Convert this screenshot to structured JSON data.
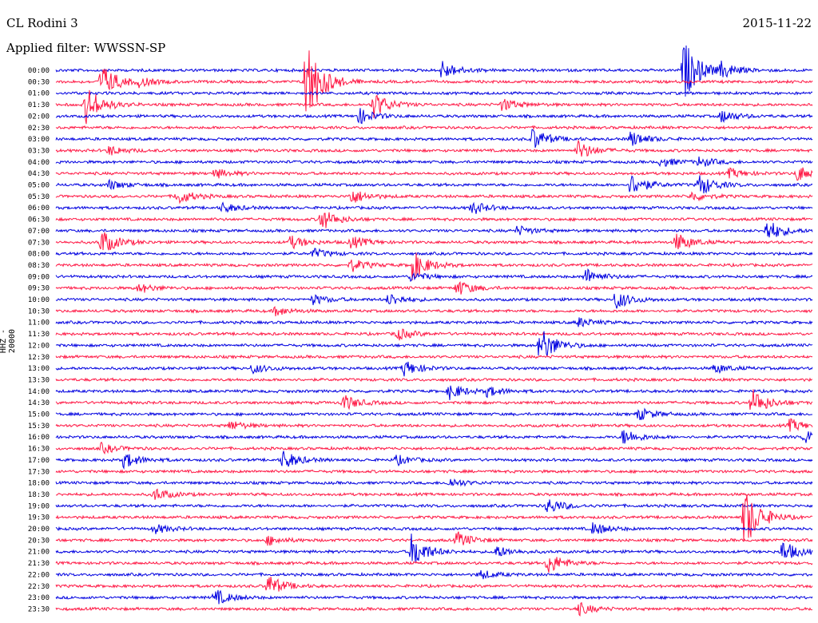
{
  "header": {
    "station": "CL Rodini 3",
    "date": "2015-11-22",
    "filter_text": "Applied filter: WWSSN-SP"
  },
  "chart_data": {
    "type": "helicorder",
    "title": "CL Rodini 3",
    "date": "2015-11-22",
    "filter": "WWSSN-SP",
    "ylabel": "HHZ - 20000",
    "row_minutes": 30,
    "colors": [
      "#0000e0",
      "#ff1744"
    ],
    "row_labels": [
      "00:00",
      "00:30",
      "01:00",
      "01:30",
      "02:00",
      "02:30",
      "03:00",
      "03:30",
      "04:00",
      "04:30",
      "05:00",
      "05:30",
      "06:00",
      "06:30",
      "07:00",
      "07:30",
      "08:00",
      "08:30",
      "09:00",
      "09:30",
      "10:00",
      "10:30",
      "11:00",
      "11:30",
      "12:00",
      "12:30",
      "13:00",
      "13:30",
      "14:00",
      "14:30",
      "15:00",
      "15:30",
      "16:00",
      "16:30",
      "17:00",
      "17:30",
      "18:00",
      "18:30",
      "19:00",
      "19:30",
      "20:00",
      "20:30",
      "21:00",
      "21:30",
      "22:00",
      "22:30",
      "23:00",
      "23:30"
    ],
    "events": [
      {
        "row": 0,
        "t": 0.51,
        "a": 12
      },
      {
        "row": 0,
        "t": 0.83,
        "a": 38
      },
      {
        "row": 0,
        "t": 0.88,
        "a": 9
      },
      {
        "row": 1,
        "t": 0.06,
        "a": 22
      },
      {
        "row": 1,
        "t": 0.33,
        "a": 60
      },
      {
        "row": 1,
        "t": 0.11,
        "a": 5
      },
      {
        "row": 3,
        "t": 0.04,
        "a": 24
      },
      {
        "row": 3,
        "t": 0.42,
        "a": 16
      },
      {
        "row": 3,
        "t": 0.59,
        "a": 8
      },
      {
        "row": 4,
        "t": 0.4,
        "a": 10
      },
      {
        "row": 4,
        "t": 0.88,
        "a": 8
      },
      {
        "row": 6,
        "t": 0.63,
        "a": 14
      },
      {
        "row": 6,
        "t": 0.76,
        "a": 10
      },
      {
        "row": 7,
        "t": 0.69,
        "a": 12
      },
      {
        "row": 7,
        "t": 0.07,
        "a": 6
      },
      {
        "row": 8,
        "t": 0.8,
        "a": 6
      },
      {
        "row": 8,
        "t": 0.85,
        "a": 6
      },
      {
        "row": 9,
        "t": 0.21,
        "a": 6
      },
      {
        "row": 9,
        "t": 0.89,
        "a": 6
      },
      {
        "row": 9,
        "t": 0.98,
        "a": 10
      },
      {
        "row": 10,
        "t": 0.07,
        "a": 6
      },
      {
        "row": 10,
        "t": 0.76,
        "a": 14
      },
      {
        "row": 10,
        "t": 0.85,
        "a": 14
      },
      {
        "row": 11,
        "t": 0.16,
        "a": 10
      },
      {
        "row": 11,
        "t": 0.39,
        "a": 10
      },
      {
        "row": 11,
        "t": 0.84,
        "a": 6
      },
      {
        "row": 12,
        "t": 0.22,
        "a": 6
      },
      {
        "row": 12,
        "t": 0.55,
        "a": 8
      },
      {
        "row": 13,
        "t": 0.35,
        "a": 14
      },
      {
        "row": 14,
        "t": 0.94,
        "a": 14
      },
      {
        "row": 14,
        "t": 0.61,
        "a": 6
      },
      {
        "row": 15,
        "t": 0.06,
        "a": 16
      },
      {
        "row": 15,
        "t": 0.31,
        "a": 8
      },
      {
        "row": 15,
        "t": 0.39,
        "a": 8
      },
      {
        "row": 15,
        "t": 0.82,
        "a": 12
      },
      {
        "row": 16,
        "t": 0.34,
        "a": 6
      },
      {
        "row": 17,
        "t": 0.39,
        "a": 8
      },
      {
        "row": 17,
        "t": 0.47,
        "a": 20
      },
      {
        "row": 18,
        "t": 0.7,
        "a": 10
      },
      {
        "row": 18,
        "t": 0.47,
        "a": 6
      },
      {
        "row": 19,
        "t": 0.11,
        "a": 6
      },
      {
        "row": 19,
        "t": 0.53,
        "a": 10
      },
      {
        "row": 20,
        "t": 0.44,
        "a": 8
      },
      {
        "row": 20,
        "t": 0.74,
        "a": 12
      },
      {
        "row": 20,
        "t": 0.34,
        "a": 6
      },
      {
        "row": 21,
        "t": 0.29,
        "a": 6
      },
      {
        "row": 22,
        "t": 0.69,
        "a": 6
      },
      {
        "row": 23,
        "t": 0.45,
        "a": 8
      },
      {
        "row": 24,
        "t": 0.64,
        "a": 24
      },
      {
        "row": 26,
        "t": 0.46,
        "a": 10
      },
      {
        "row": 26,
        "t": 0.26,
        "a": 6
      },
      {
        "row": 26,
        "t": 0.87,
        "a": 6
      },
      {
        "row": 28,
        "t": 0.52,
        "a": 10
      },
      {
        "row": 28,
        "t": 0.57,
        "a": 6
      },
      {
        "row": 29,
        "t": 0.38,
        "a": 10
      },
      {
        "row": 29,
        "t": 0.92,
        "a": 18
      },
      {
        "row": 30,
        "t": 0.77,
        "a": 8
      },
      {
        "row": 31,
        "t": 0.23,
        "a": 6
      },
      {
        "row": 31,
        "t": 0.97,
        "a": 8
      },
      {
        "row": 32,
        "t": 0.75,
        "a": 10
      },
      {
        "row": 32,
        "t": 0.99,
        "a": 8
      },
      {
        "row": 33,
        "t": 0.06,
        "a": 6
      },
      {
        "row": 34,
        "t": 0.09,
        "a": 10
      },
      {
        "row": 34,
        "t": 0.3,
        "a": 12
      },
      {
        "row": 34,
        "t": 0.45,
        "a": 6
      },
      {
        "row": 36,
        "t": 0.52,
        "a": 6
      },
      {
        "row": 37,
        "t": 0.13,
        "a": 8
      },
      {
        "row": 38,
        "t": 0.65,
        "a": 10
      },
      {
        "row": 39,
        "t": 0.91,
        "a": 40
      },
      {
        "row": 40,
        "t": 0.13,
        "a": 6
      },
      {
        "row": 40,
        "t": 0.71,
        "a": 8
      },
      {
        "row": 41,
        "t": 0.28,
        "a": 6
      },
      {
        "row": 41,
        "t": 0.53,
        "a": 10
      },
      {
        "row": 42,
        "t": 0.47,
        "a": 22
      },
      {
        "row": 42,
        "t": 0.58,
        "a": 8
      },
      {
        "row": 42,
        "t": 0.96,
        "a": 14
      },
      {
        "row": 43,
        "t": 0.65,
        "a": 14
      },
      {
        "row": 44,
        "t": 0.56,
        "a": 6
      },
      {
        "row": 45,
        "t": 0.28,
        "a": 14
      },
      {
        "row": 46,
        "t": 0.21,
        "a": 10
      },
      {
        "row": 47,
        "t": 0.69,
        "a": 8
      }
    ]
  }
}
